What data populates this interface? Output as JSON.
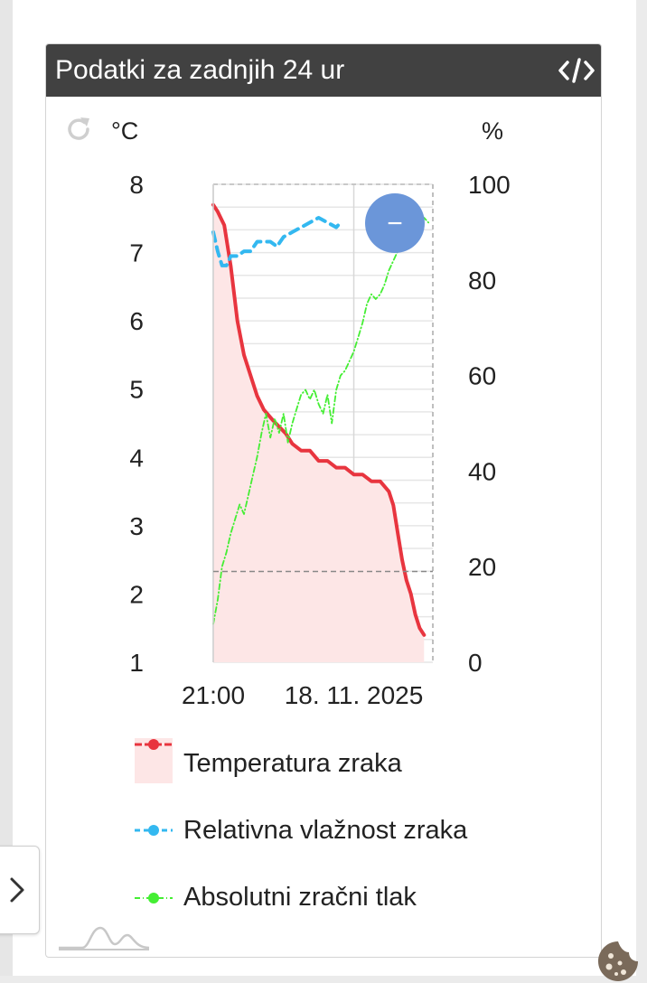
{
  "widget": {
    "title": "Podatki za zadnjih 24 ur",
    "icons": [
      "code-icon",
      "refresh-icon",
      "chevron-right-icon",
      "cookie-icon",
      "logo-icon"
    ]
  },
  "chart_data": {
    "type": "line",
    "title": "Podatki za zadnjih 24 ur",
    "y_left": {
      "unit": "°C",
      "ticks": [
        "8",
        "7",
        "6",
        "5",
        "4",
        "3",
        "2",
        "1"
      ],
      "range": [
        1,
        8
      ]
    },
    "y_right": {
      "unit": "%",
      "ticks": [
        "100",
        "80",
        "60",
        "40",
        "20",
        "0"
      ],
      "range": [
        0,
        100
      ]
    },
    "x": {
      "ticks": [
        "21:00",
        "18. 11. 2025"
      ],
      "range": [
        0,
        1
      ]
    },
    "series": [
      {
        "name": "Temperatura zraka",
        "axis": "left",
        "style": "solid-area",
        "color": "#e8353f",
        "points": [
          [
            0,
            7.7
          ],
          [
            0.02,
            7.6
          ],
          [
            0.05,
            7.4
          ],
          [
            0.08,
            6.8
          ],
          [
            0.11,
            6.0
          ],
          [
            0.14,
            5.5
          ],
          [
            0.17,
            5.2
          ],
          [
            0.2,
            4.9
          ],
          [
            0.23,
            4.7
          ],
          [
            0.27,
            4.55
          ],
          [
            0.3,
            4.45
          ],
          [
            0.33,
            4.35
          ],
          [
            0.36,
            4.2
          ],
          [
            0.4,
            4.1
          ],
          [
            0.44,
            4.1
          ],
          [
            0.48,
            3.95
          ],
          [
            0.52,
            3.95
          ],
          [
            0.56,
            3.85
          ],
          [
            0.6,
            3.85
          ],
          [
            0.64,
            3.75
          ],
          [
            0.68,
            3.75
          ],
          [
            0.72,
            3.65
          ],
          [
            0.76,
            3.65
          ],
          [
            0.8,
            3.5
          ],
          [
            0.82,
            3.3
          ],
          [
            0.84,
            2.9
          ],
          [
            0.86,
            2.5
          ],
          [
            0.88,
            2.2
          ],
          [
            0.9,
            2.0
          ],
          [
            0.92,
            1.7
          ],
          [
            0.94,
            1.5
          ],
          [
            0.96,
            1.4
          ]
        ]
      },
      {
        "name": "Relativna vlažnost zraka",
        "axis": "right",
        "style": "dashed",
        "color": "#33b8f0",
        "points": [
          [
            0,
            90
          ],
          [
            0.02,
            86
          ],
          [
            0.04,
            83
          ],
          [
            0.06,
            83
          ],
          [
            0.08,
            85
          ],
          [
            0.11,
            85
          ],
          [
            0.14,
            86
          ],
          [
            0.17,
            86
          ],
          [
            0.2,
            88
          ],
          [
            0.23,
            88
          ],
          [
            0.26,
            88
          ],
          [
            0.29,
            87
          ],
          [
            0.32,
            89
          ],
          [
            0.36,
            90
          ],
          [
            0.4,
            91
          ],
          [
            0.44,
            92
          ],
          [
            0.48,
            93
          ],
          [
            0.52,
            92
          ],
          [
            0.56,
            91
          ],
          [
            0.58,
            92
          ]
        ]
      },
      {
        "name": "Absolutni zračni tlak",
        "axis": "right",
        "style": "dash-dot",
        "color": "#44ee33",
        "points": [
          [
            0,
            8
          ],
          [
            0.02,
            13
          ],
          [
            0.04,
            20
          ],
          [
            0.06,
            23
          ],
          [
            0.08,
            27
          ],
          [
            0.1,
            30
          ],
          [
            0.12,
            33
          ],
          [
            0.14,
            31
          ],
          [
            0.16,
            35
          ],
          [
            0.18,
            39
          ],
          [
            0.2,
            43
          ],
          [
            0.22,
            48
          ],
          [
            0.24,
            52
          ],
          [
            0.26,
            47
          ],
          [
            0.28,
            51
          ],
          [
            0.3,
            48
          ],
          [
            0.32,
            52
          ],
          [
            0.34,
            46
          ],
          [
            0.36,
            50
          ],
          [
            0.38,
            53
          ],
          [
            0.4,
            56
          ],
          [
            0.42,
            57
          ],
          [
            0.44,
            55
          ],
          [
            0.46,
            57
          ],
          [
            0.48,
            54
          ],
          [
            0.5,
            52
          ],
          [
            0.52,
            56
          ],
          [
            0.54,
            50
          ],
          [
            0.56,
            57
          ],
          [
            0.58,
            60
          ],
          [
            0.6,
            61
          ],
          [
            0.62,
            63
          ],
          [
            0.64,
            65
          ],
          [
            0.66,
            68
          ],
          [
            0.68,
            71
          ],
          [
            0.7,
            75
          ],
          [
            0.72,
            77
          ],
          [
            0.74,
            76
          ],
          [
            0.76,
            77
          ],
          [
            0.78,
            79
          ],
          [
            0.8,
            82
          ],
          [
            0.82,
            84
          ],
          [
            0.84,
            86
          ],
          [
            0.86,
            88
          ],
          [
            0.88,
            87
          ],
          [
            0.9,
            88
          ],
          [
            0.92,
            89
          ],
          [
            0.94,
            92
          ],
          [
            0.96,
            93
          ],
          [
            0.98,
            92
          ]
        ]
      }
    ],
    "reference_line": {
      "axis": "right",
      "value": 19,
      "style": "dashed"
    },
    "grid": true,
    "legend_position": "bottom",
    "zoom_button": "−"
  }
}
